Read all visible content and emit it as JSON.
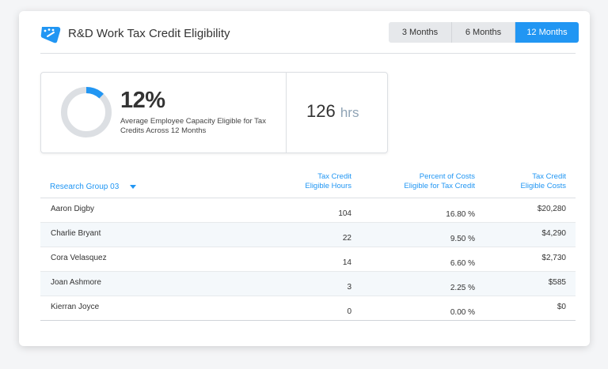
{
  "header": {
    "title": "R&D Work Tax Credit Eligibility"
  },
  "range_tabs": [
    {
      "label": "3 Months",
      "active": false
    },
    {
      "label": "6 Months",
      "active": false
    },
    {
      "label": "12 Months",
      "active": true
    }
  ],
  "summary": {
    "capacity_percent_label": "12%",
    "capacity_fraction": 0.12,
    "capacity_desc": "Average Employee Capacity Eligible for Tax Credits Across 12 Months",
    "hours_value": "126",
    "hours_unit": "hrs"
  },
  "table": {
    "group_label": "Research Group 03",
    "columns": {
      "hours": [
        "Tax Credit",
        "Eligible Hours"
      ],
      "percent": [
        "Percent of Costs",
        "Eligible for Tax Credit"
      ],
      "costs": [
        "Tax Credit",
        "Eligible Costs"
      ]
    },
    "rows": [
      {
        "name": "Aaron Digby",
        "hours": "104",
        "percent": "16.80 %",
        "cost": "$20,280"
      },
      {
        "name": "Charlie Bryant",
        "hours": "22",
        "percent": "9.50 %",
        "cost": "$4,290"
      },
      {
        "name": "Cora Velasquez",
        "hours": "14",
        "percent": "6.60 %",
        "cost": "$2,730"
      },
      {
        "name": "Joan Ashmore",
        "hours": "3",
        "percent": "2.25 %",
        "cost": "$585"
      },
      {
        "name": "Kierran Joyce",
        "hours": "0",
        "percent": "0.00 %",
        "cost": "$0"
      }
    ]
  },
  "colors": {
    "accent": "#2196f3",
    "track": "#dcdfe3"
  },
  "icons": {
    "logo": "gauge-icon",
    "dropdown": "caret-down-icon"
  }
}
